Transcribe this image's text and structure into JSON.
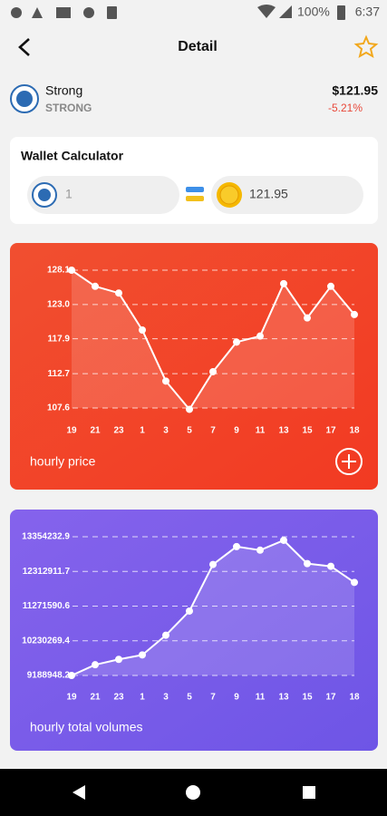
{
  "status_bar": {
    "battery": "100%",
    "time": "6:37"
  },
  "header": {
    "title": "Detail"
  },
  "coin": {
    "name": "Strong",
    "symbol": "STRONG",
    "price": "$121.95",
    "change": "-5.21%"
  },
  "wallet": {
    "title": "Wallet Calculator",
    "amount": "1",
    "value": "121.95"
  },
  "chart_data": [
    {
      "type": "line",
      "label": "hourly price",
      "color": "#ffffff",
      "categories": [
        "19",
        "21",
        "23",
        "1",
        "3",
        "5",
        "7",
        "9",
        "11",
        "13",
        "15",
        "17",
        "18"
      ],
      "values": [
        128.1,
        125.7,
        124.7,
        119.2,
        111.6,
        107.4,
        113.0,
        117.4,
        118.3,
        126.1,
        121.0,
        125.7,
        121.5
      ],
      "ylim": [
        107.6,
        128.1
      ],
      "yticks": [
        107.6,
        112.7,
        117.9,
        {
          "value": 123.0,
          "label": "123.0"
        },
        128.1
      ],
      "grid": true
    },
    {
      "type": "line",
      "label": "hourly total volumes",
      "color": "#ffffff",
      "categories": [
        "19",
        "21",
        "23",
        "1",
        "3",
        "5",
        "7",
        "9",
        "11",
        "13",
        "15",
        "17",
        "18"
      ],
      "values": [
        9189000,
        9511000,
        9672000,
        9806000,
        10398000,
        11123000,
        12521000,
        13058000,
        12951000,
        13246000,
        12548000,
        12467000,
        11984000
      ],
      "ylim": [
        9188948.2,
        13354232.9
      ],
      "yticks": [
        9188948.2,
        10230269.4,
        11271590.6,
        12312911.7,
        13354232.9
      ],
      "grid": true
    }
  ]
}
